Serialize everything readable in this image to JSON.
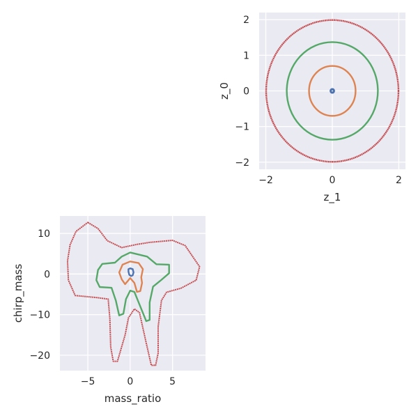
{
  "chart_data": [
    {
      "type": "scatter",
      "xlabel": "z_1",
      "ylabel": "z_0",
      "xlim": [
        -2.2,
        2.2
      ],
      "ylim": [
        -2.2,
        2.2
      ],
      "xticks": [
        -2,
        0,
        2
      ],
      "yticks": [
        -2,
        -1,
        0,
        1,
        2
      ],
      "grid": true,
      "series": [
        {
          "color": "#4c72b0",
          "shape": "circle",
          "radius": 0.05
        },
        {
          "color": "#dd8452",
          "shape": "circle",
          "radius": 0.7
        },
        {
          "color": "#55a868",
          "shape": "circle",
          "radius": 1.37
        },
        {
          "color": "#c44e52",
          "shape": "circle",
          "radius": 1.99
        }
      ]
    },
    {
      "type": "scatter",
      "xlabel": "mass_ratio",
      "ylabel": "chirp_mass",
      "xlim": [
        -8.3,
        8.9
      ],
      "ylim": [
        -23.8,
        14.3
      ],
      "xticks": [
        -5,
        0,
        5
      ],
      "yticks": [
        -20,
        -10,
        0,
        10
      ],
      "grid": true,
      "series": [
        {
          "color": "#4c72b0",
          "shape": "contour",
          "points": [
            [
              0.0,
              1.4
            ],
            [
              0.3,
              1.2
            ],
            [
              0.4,
              0.4
            ],
            [
              0.3,
              -0.3
            ],
            [
              0.1,
              -0.5
            ],
            [
              -0.1,
              -0.2
            ],
            [
              -0.2,
              0.6
            ],
            [
              -0.2,
              1.2
            ],
            [
              0.0,
              1.4
            ]
          ]
        },
        {
          "color": "#dd8452",
          "shape": "contour",
          "points": [
            [
              0.0,
              3.1
            ],
            [
              1.0,
              2.7
            ],
            [
              1.5,
              1.2
            ],
            [
              1.3,
              -0.8
            ],
            [
              1.4,
              -2.2
            ],
            [
              1.2,
              -4.2
            ],
            [
              0.8,
              -4.4
            ],
            [
              0.5,
              -2.2
            ],
            [
              0.0,
              -1.0
            ],
            [
              -0.6,
              -2.5
            ],
            [
              -1.0,
              -1.3
            ],
            [
              -1.3,
              0.4
            ],
            [
              -0.9,
              2.3
            ],
            [
              0.0,
              3.1
            ]
          ]
        },
        {
          "color": "#55a868",
          "shape": "contour",
          "points": [
            [
              0.0,
              5.3
            ],
            [
              2.0,
              4.3
            ],
            [
              3.1,
              2.4
            ],
            [
              4.6,
              2.3
            ],
            [
              4.6,
              0.2
            ],
            [
              3.6,
              -1.6
            ],
            [
              2.7,
              -3.1
            ],
            [
              2.3,
              -7.0
            ],
            [
              2.3,
              -11.3
            ],
            [
              1.9,
              -11.6
            ],
            [
              1.0,
              -7.0
            ],
            [
              0.5,
              -4.4
            ],
            [
              0.0,
              -4.1
            ],
            [
              -0.5,
              -6.2
            ],
            [
              -0.8,
              -9.8
            ],
            [
              -1.3,
              -10.2
            ],
            [
              -1.7,
              -6.5
            ],
            [
              -2.2,
              -3.4
            ],
            [
              -3.6,
              -3.2
            ],
            [
              -4.0,
              -1.5
            ],
            [
              -3.8,
              1.0
            ],
            [
              -3.3,
              2.5
            ],
            [
              -1.8,
              2.8
            ],
            [
              -1.0,
              4.3
            ],
            [
              0.0,
              5.3
            ]
          ]
        },
        {
          "color": "#c44e52",
          "shape": "contour",
          "points": [
            [
              -5.0,
              12.7
            ],
            [
              -3.8,
              11.2
            ],
            [
              -2.7,
              8.2
            ],
            [
              -1.0,
              6.5
            ],
            [
              0.8,
              7.3
            ],
            [
              2.3,
              7.8
            ],
            [
              5.0,
              8.3
            ],
            [
              6.5,
              7.0
            ],
            [
              8.2,
              1.8
            ],
            [
              7.8,
              -1.5
            ],
            [
              6.0,
              -3.5
            ],
            [
              4.3,
              -4.5
            ],
            [
              3.7,
              -6.5
            ],
            [
              3.3,
              -13.0
            ],
            [
              3.3,
              -19.5
            ],
            [
              3.0,
              -22.5
            ],
            [
              2.5,
              -22.5
            ],
            [
              1.9,
              -17.0
            ],
            [
              1.1,
              -9.5
            ],
            [
              0.5,
              -8.6
            ],
            [
              -0.2,
              -10.8
            ],
            [
              -0.6,
              -15.0
            ],
            [
              -1.5,
              -21.5
            ],
            [
              -2.0,
              -21.5
            ],
            [
              -2.3,
              -18.0
            ],
            [
              -2.4,
              -11.0
            ],
            [
              -2.6,
              -6.2
            ],
            [
              -4.0,
              -5.8
            ],
            [
              -6.5,
              -5.3
            ],
            [
              -7.3,
              -1.5
            ],
            [
              -7.4,
              3.2
            ],
            [
              -7.1,
              7.2
            ],
            [
              -6.4,
              10.5
            ],
            [
              -5.0,
              12.7
            ]
          ]
        }
      ]
    }
  ]
}
